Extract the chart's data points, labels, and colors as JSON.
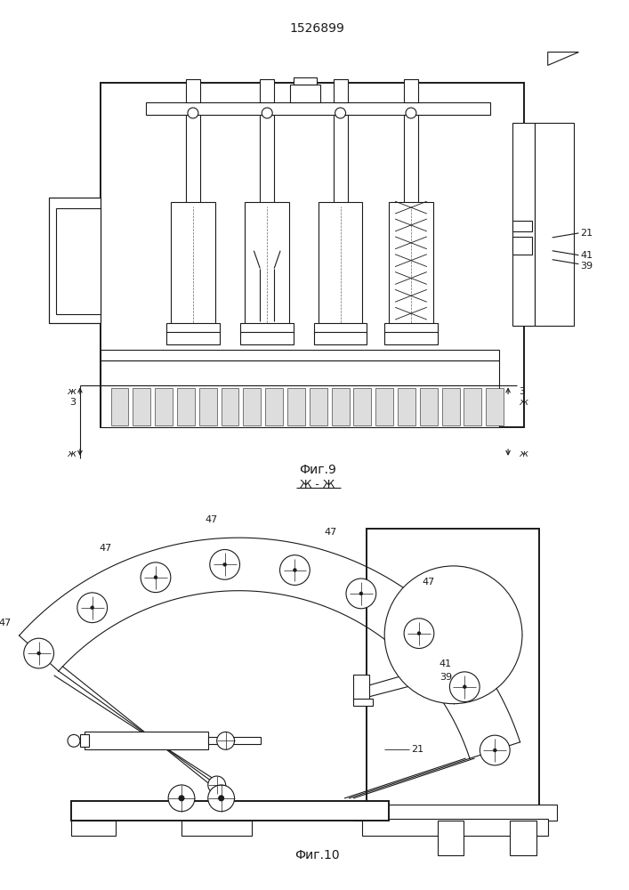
{
  "title": "1526899",
  "fig9_label": "Фиг.9",
  "fig10_label": "Фиг.10",
  "section_label": "Ж - Ж",
  "line_color": "#1a1a1a",
  "bg_color": "#ffffff",
  "lw": 0.8,
  "lw2": 1.4
}
